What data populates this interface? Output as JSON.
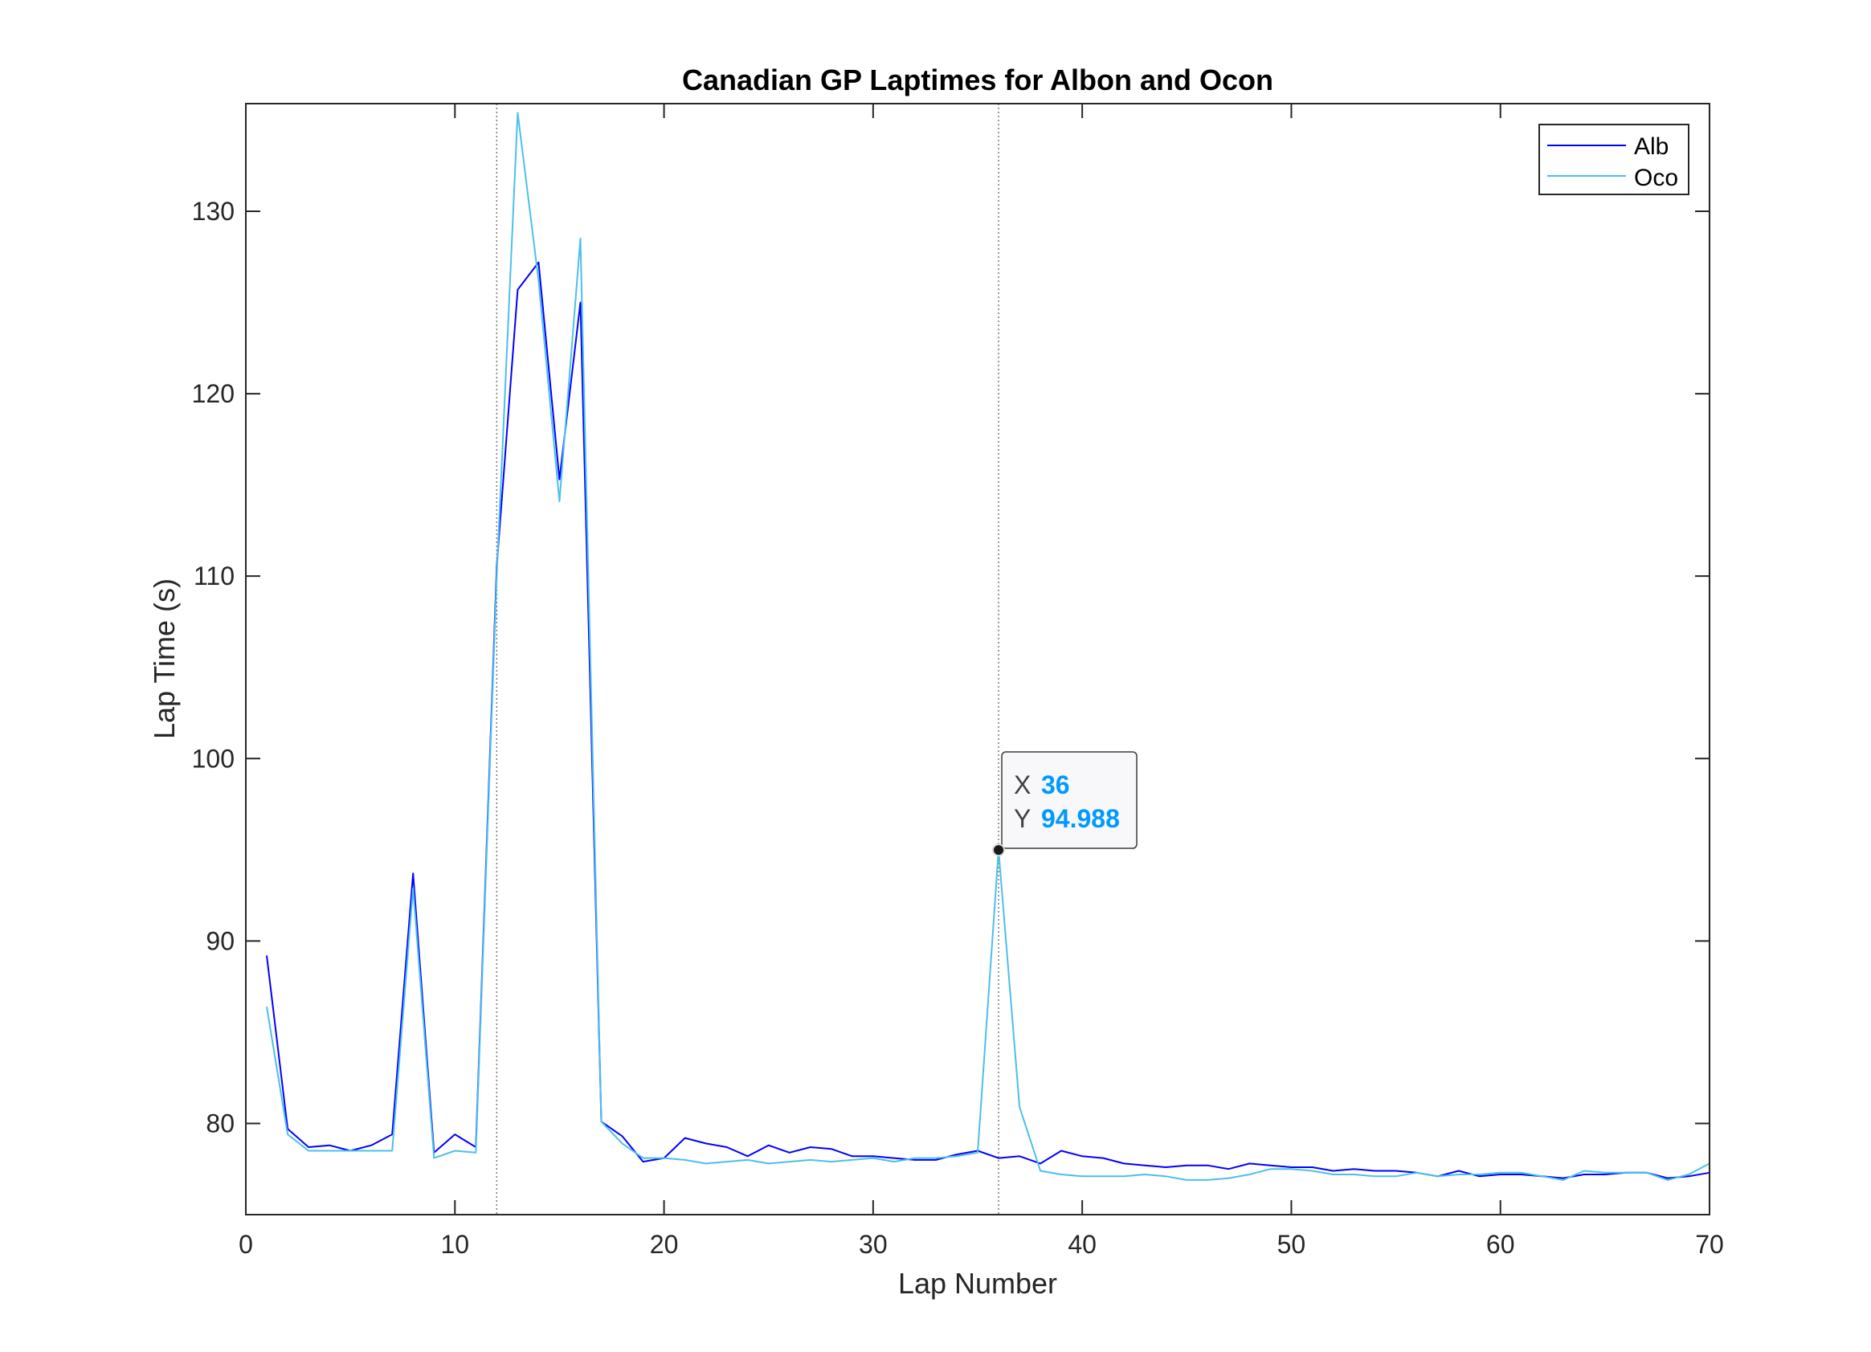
{
  "chart_data": {
    "type": "line",
    "title": "Canadian GP Laptimes for Albon and Ocon",
    "xlabel": "Lap Number",
    "ylabel": "Lap Time (s)",
    "xlim": [
      0,
      70
    ],
    "ylim": [
      75,
      135.9
    ],
    "xticks": [
      0,
      10,
      20,
      30,
      40,
      50,
      60,
      70
    ],
    "yticks": [
      80,
      90,
      100,
      110,
      120,
      130
    ],
    "grid": false,
    "legend_position": "top-right",
    "reference_lines_x": [
      12,
      36
    ],
    "series": [
      {
        "name": "Alb",
        "color": "#0000FF",
        "x": [
          1,
          2,
          3,
          4,
          5,
          6,
          7,
          8,
          9,
          10,
          11,
          12,
          13,
          14,
          15,
          16,
          17,
          18,
          19,
          20,
          21,
          22,
          23,
          24,
          25,
          26,
          27,
          28,
          29,
          30,
          31,
          32,
          33,
          34,
          35,
          36,
          37,
          38,
          39,
          40,
          41,
          42,
          43,
          44,
          45,
          46,
          47,
          48,
          49,
          50,
          51,
          52,
          53,
          54,
          55,
          56,
          57,
          58,
          59,
          60,
          61,
          62,
          63,
          64,
          65,
          66,
          67,
          68,
          69,
          70
        ],
        "values": [
          89.2,
          79.7,
          78.7,
          78.8,
          78.5,
          78.8,
          79.4,
          93.7,
          78.4,
          79.4,
          78.7,
          110.5,
          125.7,
          127.2,
          115.3,
          125.0,
          80.1,
          79.3,
          77.9,
          78.1,
          79.2,
          78.9,
          78.7,
          78.2,
          78.8,
          78.4,
          78.7,
          78.6,
          78.2,
          78.2,
          78.1,
          78.0,
          78.0,
          78.3,
          78.5,
          78.1,
          78.2,
          77.8,
          78.5,
          78.2,
          78.1,
          77.8,
          77.7,
          77.6,
          77.7,
          77.7,
          77.5,
          77.8,
          77.7,
          77.6,
          77.6,
          77.4,
          77.5,
          77.4,
          77.4,
          77.3,
          77.1,
          77.4,
          77.1,
          77.2,
          77.2,
          77.1,
          77.0,
          77.2,
          77.2,
          77.3,
          77.3,
          77.0,
          77.1,
          77.3
        ]
      },
      {
        "name": "Oco",
        "color": "#4DBEEE",
        "x": [
          1,
          2,
          3,
          4,
          5,
          6,
          7,
          8,
          9,
          10,
          11,
          12,
          13,
          14,
          15,
          16,
          17,
          18,
          19,
          20,
          21,
          22,
          23,
          24,
          25,
          26,
          27,
          28,
          29,
          30,
          31,
          32,
          33,
          34,
          35,
          36,
          37,
          38,
          39,
          40,
          41,
          42,
          43,
          44,
          45,
          46,
          47,
          48,
          49,
          50,
          51,
          52,
          53,
          54,
          55,
          56,
          57,
          58,
          59,
          60,
          61,
          62,
          63,
          64,
          65,
          66,
          67,
          68,
          69,
          70
        ],
        "values": [
          86.4,
          79.4,
          78.5,
          78.5,
          78.5,
          78.5,
          78.5,
          92.9,
          78.1,
          78.5,
          78.4,
          110.0,
          135.4,
          126.2,
          114.1,
          128.5,
          80.1,
          78.9,
          78.1,
          78.1,
          78.0,
          77.8,
          77.9,
          78.0,
          77.8,
          77.9,
          78.0,
          77.9,
          78.0,
          78.1,
          77.9,
          78.1,
          78.1,
          78.2,
          78.4,
          94.988,
          80.9,
          77.4,
          77.2,
          77.1,
          77.1,
          77.1,
          77.2,
          77.1,
          76.9,
          76.9,
          77.0,
          77.2,
          77.5,
          77.5,
          77.4,
          77.2,
          77.2,
          77.1,
          77.1,
          77.3,
          77.1,
          77.2,
          77.2,
          77.3,
          77.3,
          77.1,
          76.9,
          77.4,
          77.3,
          77.3,
          77.3,
          76.9,
          77.2,
          77.8
        ]
      }
    ],
    "datatip": {
      "x_key": "X",
      "x_value": "36",
      "y_key": "Y",
      "y_value": "94.988",
      "x": 36,
      "y": 94.988,
      "value_color": "#0099FF"
    }
  }
}
